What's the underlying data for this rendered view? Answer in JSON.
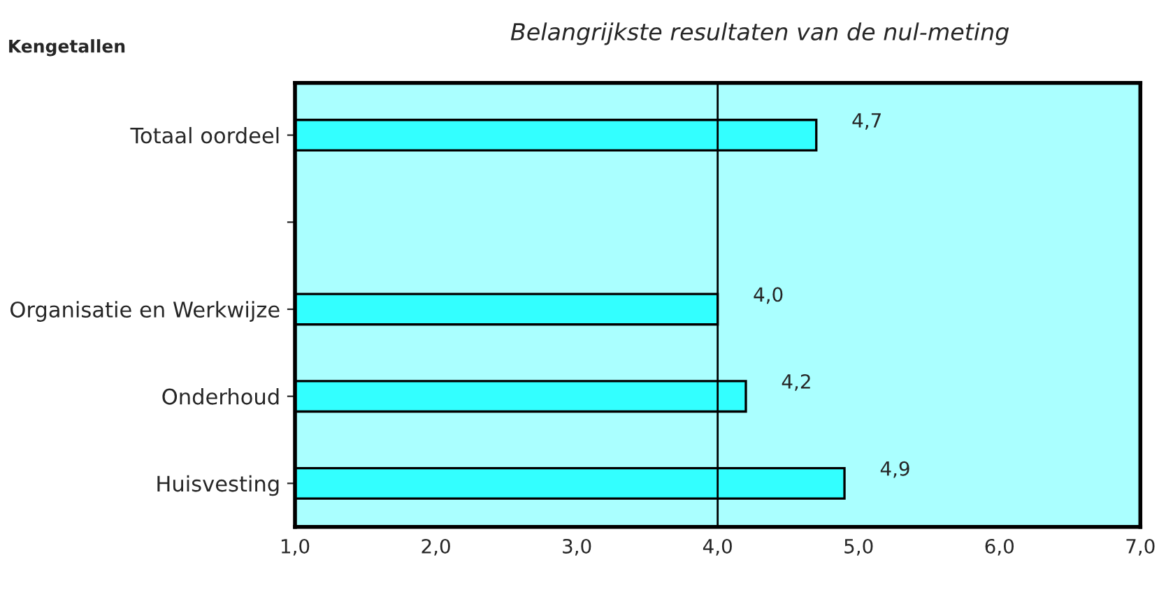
{
  "chart_data": {
    "type": "bar",
    "orientation": "horizontal",
    "title": "Belangrijkste resultaten van de nul-meting",
    "ylabel": "Kengetallen",
    "categories": [
      "Totaal oordeel",
      null,
      "Organisatie en Werkwijze",
      "Onderhoud",
      "Huisvesting"
    ],
    "values": [
      4.7,
      null,
      4.0,
      4.2,
      4.9
    ],
    "value_labels": [
      "4,7",
      null,
      "4,0",
      "4,2",
      "4,9"
    ],
    "color": "#33ffff",
    "xlim": [
      1,
      7
    ],
    "xticks": [
      {
        "value": 1,
        "label": "1,0"
      },
      {
        "value": 2,
        "label": "2,0"
      },
      {
        "value": 3,
        "label": "3,0"
      },
      {
        "value": 4,
        "label": "4,0"
      },
      {
        "value": 5,
        "label": "5,0"
      },
      {
        "value": 6,
        "label": "6,0"
      },
      {
        "value": 7,
        "label": "7,0"
      }
    ],
    "ref_lines": [
      {
        "axis": "x",
        "value": 4.0,
        "label": null,
        "color": "#000000"
      }
    ],
    "grid": false
  }
}
